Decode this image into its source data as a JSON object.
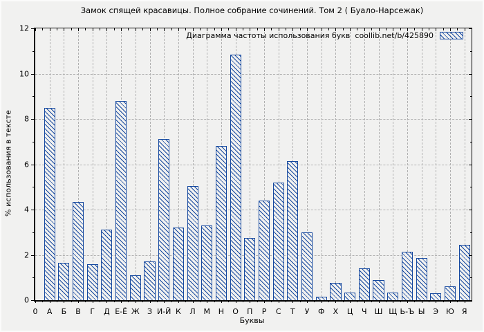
{
  "chart_data": {
    "type": "bar",
    "title": "Замок спящей красавицы. Полное собрание сочинений. Том 2 ( Буало-Нарсежак)",
    "legend_label": "Диаграмма частоты использования букв  coollib.net/b/425890",
    "xlabel": "Буквы",
    "ylabel": "% использования в тексте",
    "origin_label": "0",
    "ylim": [
      0,
      12
    ],
    "ytick_step": 2,
    "ytick_labels": [
      "0",
      "2",
      "4",
      "6",
      "8",
      "10",
      "12"
    ],
    "grid": "dashed",
    "legend_position": "top-right-inside",
    "categories": [
      "А",
      "Б",
      "В",
      "Г",
      "Д",
      "Е-Ё",
      "Ж",
      "З",
      "И-Й",
      "К",
      "Л",
      "М",
      "Н",
      "О",
      "П",
      "Р",
      "С",
      "Т",
      "У",
      "Ф",
      "Х",
      "Ц",
      "Ч",
      "Ш",
      "Щ",
      "Ь-Ъ",
      "Ы",
      "Э",
      "Ю",
      "Я"
    ],
    "values": [
      8.5,
      1.65,
      4.35,
      1.6,
      3.1,
      8.8,
      1.1,
      1.7,
      7.1,
      3.2,
      5.05,
      3.3,
      6.8,
      10.85,
      2.75,
      4.4,
      5.2,
      6.15,
      3.0,
      0.15,
      0.75,
      0.35,
      1.4,
      0.9,
      0.35,
      2.15,
      1.85,
      0.3,
      0.6,
      2.45
    ],
    "colors": {
      "bar": "#15489f",
      "grid": "#b0b0b0",
      "axis": "#000000",
      "background": "#f1f1f0",
      "text": "#000000"
    }
  }
}
